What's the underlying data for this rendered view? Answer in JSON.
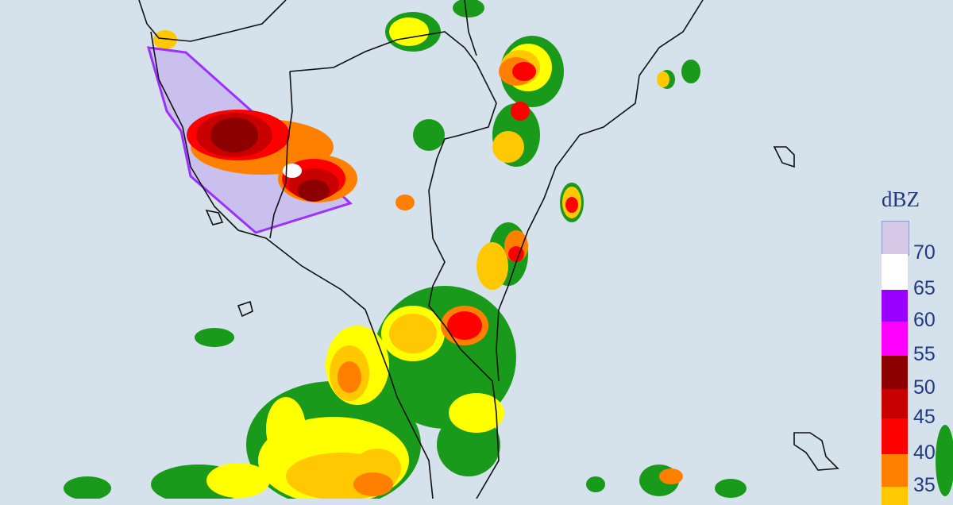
{
  "map": {
    "background": "#d5e1eb",
    "border_color": "#111111",
    "warning_polygon": {
      "stroke": "#9b30ff",
      "fill": "#c6b4ee"
    }
  },
  "legend": {
    "unit": "dBZ",
    "ticks": [
      "70",
      "65",
      "60",
      "55",
      "50",
      "45",
      "40",
      "35"
    ],
    "colors": [
      "#d6c8e6",
      "#ffffff",
      "#9a00ff",
      "#ff00ff",
      "#8c0000",
      "#c80000",
      "#ff0000",
      "#ff8000",
      "#ffc800"
    ]
  }
}
